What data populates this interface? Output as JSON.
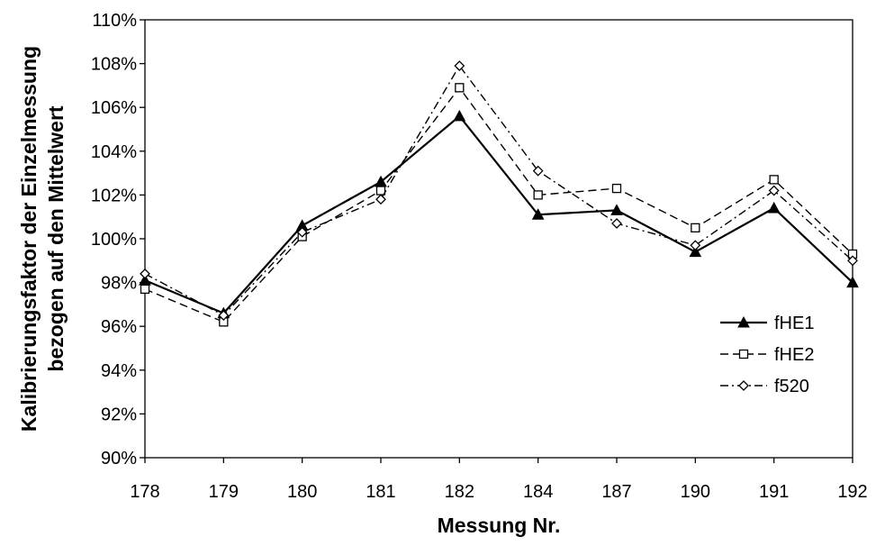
{
  "chart_data": {
    "type": "line",
    "title": "",
    "xlabel": "Messung Nr.",
    "ylabel_line1": "Kalibrierungsfaktor der Einzelmessung",
    "ylabel_line2": "bezogen auf den Mittelwert",
    "categories": [
      "178",
      "179",
      "180",
      "181",
      "182",
      "184",
      "187",
      "190",
      "191",
      "192"
    ],
    "ylim": [
      90,
      110
    ],
    "yticks": [
      90,
      92,
      94,
      96,
      98,
      100,
      102,
      104,
      106,
      108,
      110
    ],
    "ytick_labels": [
      "90%",
      "92%",
      "94%",
      "96%",
      "98%",
      "100%",
      "102%",
      "104%",
      "106%",
      "108%",
      "110%"
    ],
    "grid": false,
    "legend_position": "right",
    "series": [
      {
        "name": "fHE1",
        "values": [
          98.1,
          96.6,
          100.6,
          102.6,
          105.6,
          101.1,
          101.3,
          99.4,
          101.4,
          98.0
        ],
        "marker": "triangle-filled",
        "dash": "solid",
        "color": "#000000"
      },
      {
        "name": "fHE2",
        "values": [
          97.7,
          96.2,
          100.1,
          102.2,
          106.9,
          102.0,
          102.3,
          100.5,
          102.7,
          99.3
        ],
        "marker": "square-open",
        "dash": "dashed",
        "color": "#000000"
      },
      {
        "name": "f520",
        "values": [
          98.4,
          96.5,
          100.3,
          101.8,
          107.9,
          103.1,
          100.7,
          99.7,
          102.2,
          99.0
        ],
        "marker": "diamond-open",
        "dash": "dashdot",
        "color": "#000000"
      }
    ]
  }
}
